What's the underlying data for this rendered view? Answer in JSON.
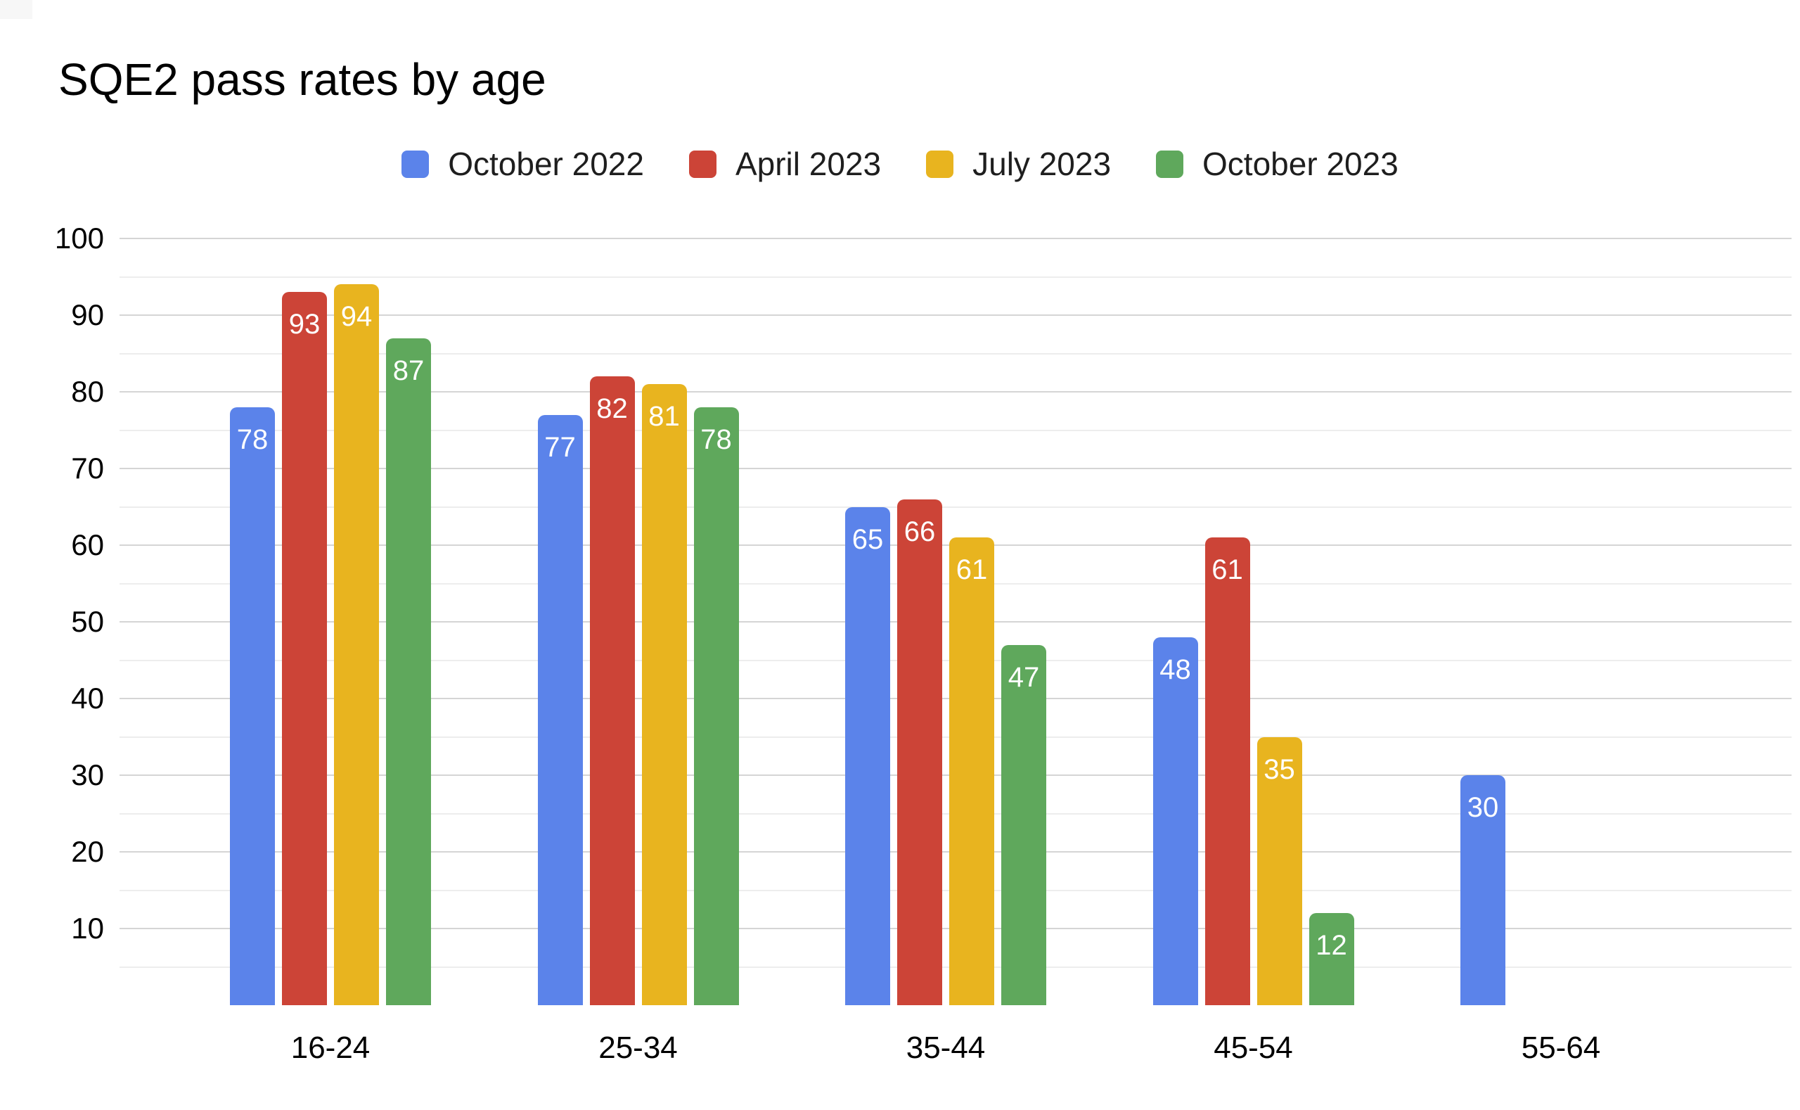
{
  "title": "SQE2 pass rates by age",
  "chart_data": {
    "type": "bar",
    "title": "SQE2 pass rates by age",
    "categories": [
      "16-24",
      "25-34",
      "35-44",
      "45-54",
      "55-64"
    ],
    "series": [
      {
        "name": "October 2022",
        "color": "#5B83EA",
        "values": [
          78,
          77,
          65,
          48,
          30
        ]
      },
      {
        "name": "April 2023",
        "color": "#CC4437",
        "values": [
          93,
          82,
          66,
          61,
          null
        ]
      },
      {
        "name": "July 2023",
        "color": "#E8B41F",
        "values": [
          94,
          81,
          61,
          35,
          null
        ]
      },
      {
        "name": "October 2023",
        "color": "#5FA85C",
        "values": [
          87,
          78,
          47,
          12,
          null
        ]
      }
    ],
    "xlabel": "",
    "ylabel": "",
    "ylim": [
      0,
      100
    ],
    "yticks": [
      10,
      20,
      30,
      40,
      50,
      60,
      70,
      80,
      90,
      100
    ],
    "minor_tick_step": 5,
    "grid": true,
    "legend_position": "top",
    "bar_value_labels": true,
    "bar_label_color": "#FFFFFF",
    "colors": {
      "major_gridline": "#D5D5D5",
      "minor_gridline": "#EDEDED",
      "axis_text": "#000000",
      "legend_text": "#1E1E1E",
      "title_text": "#000000",
      "background": "#FFFFFF"
    }
  }
}
